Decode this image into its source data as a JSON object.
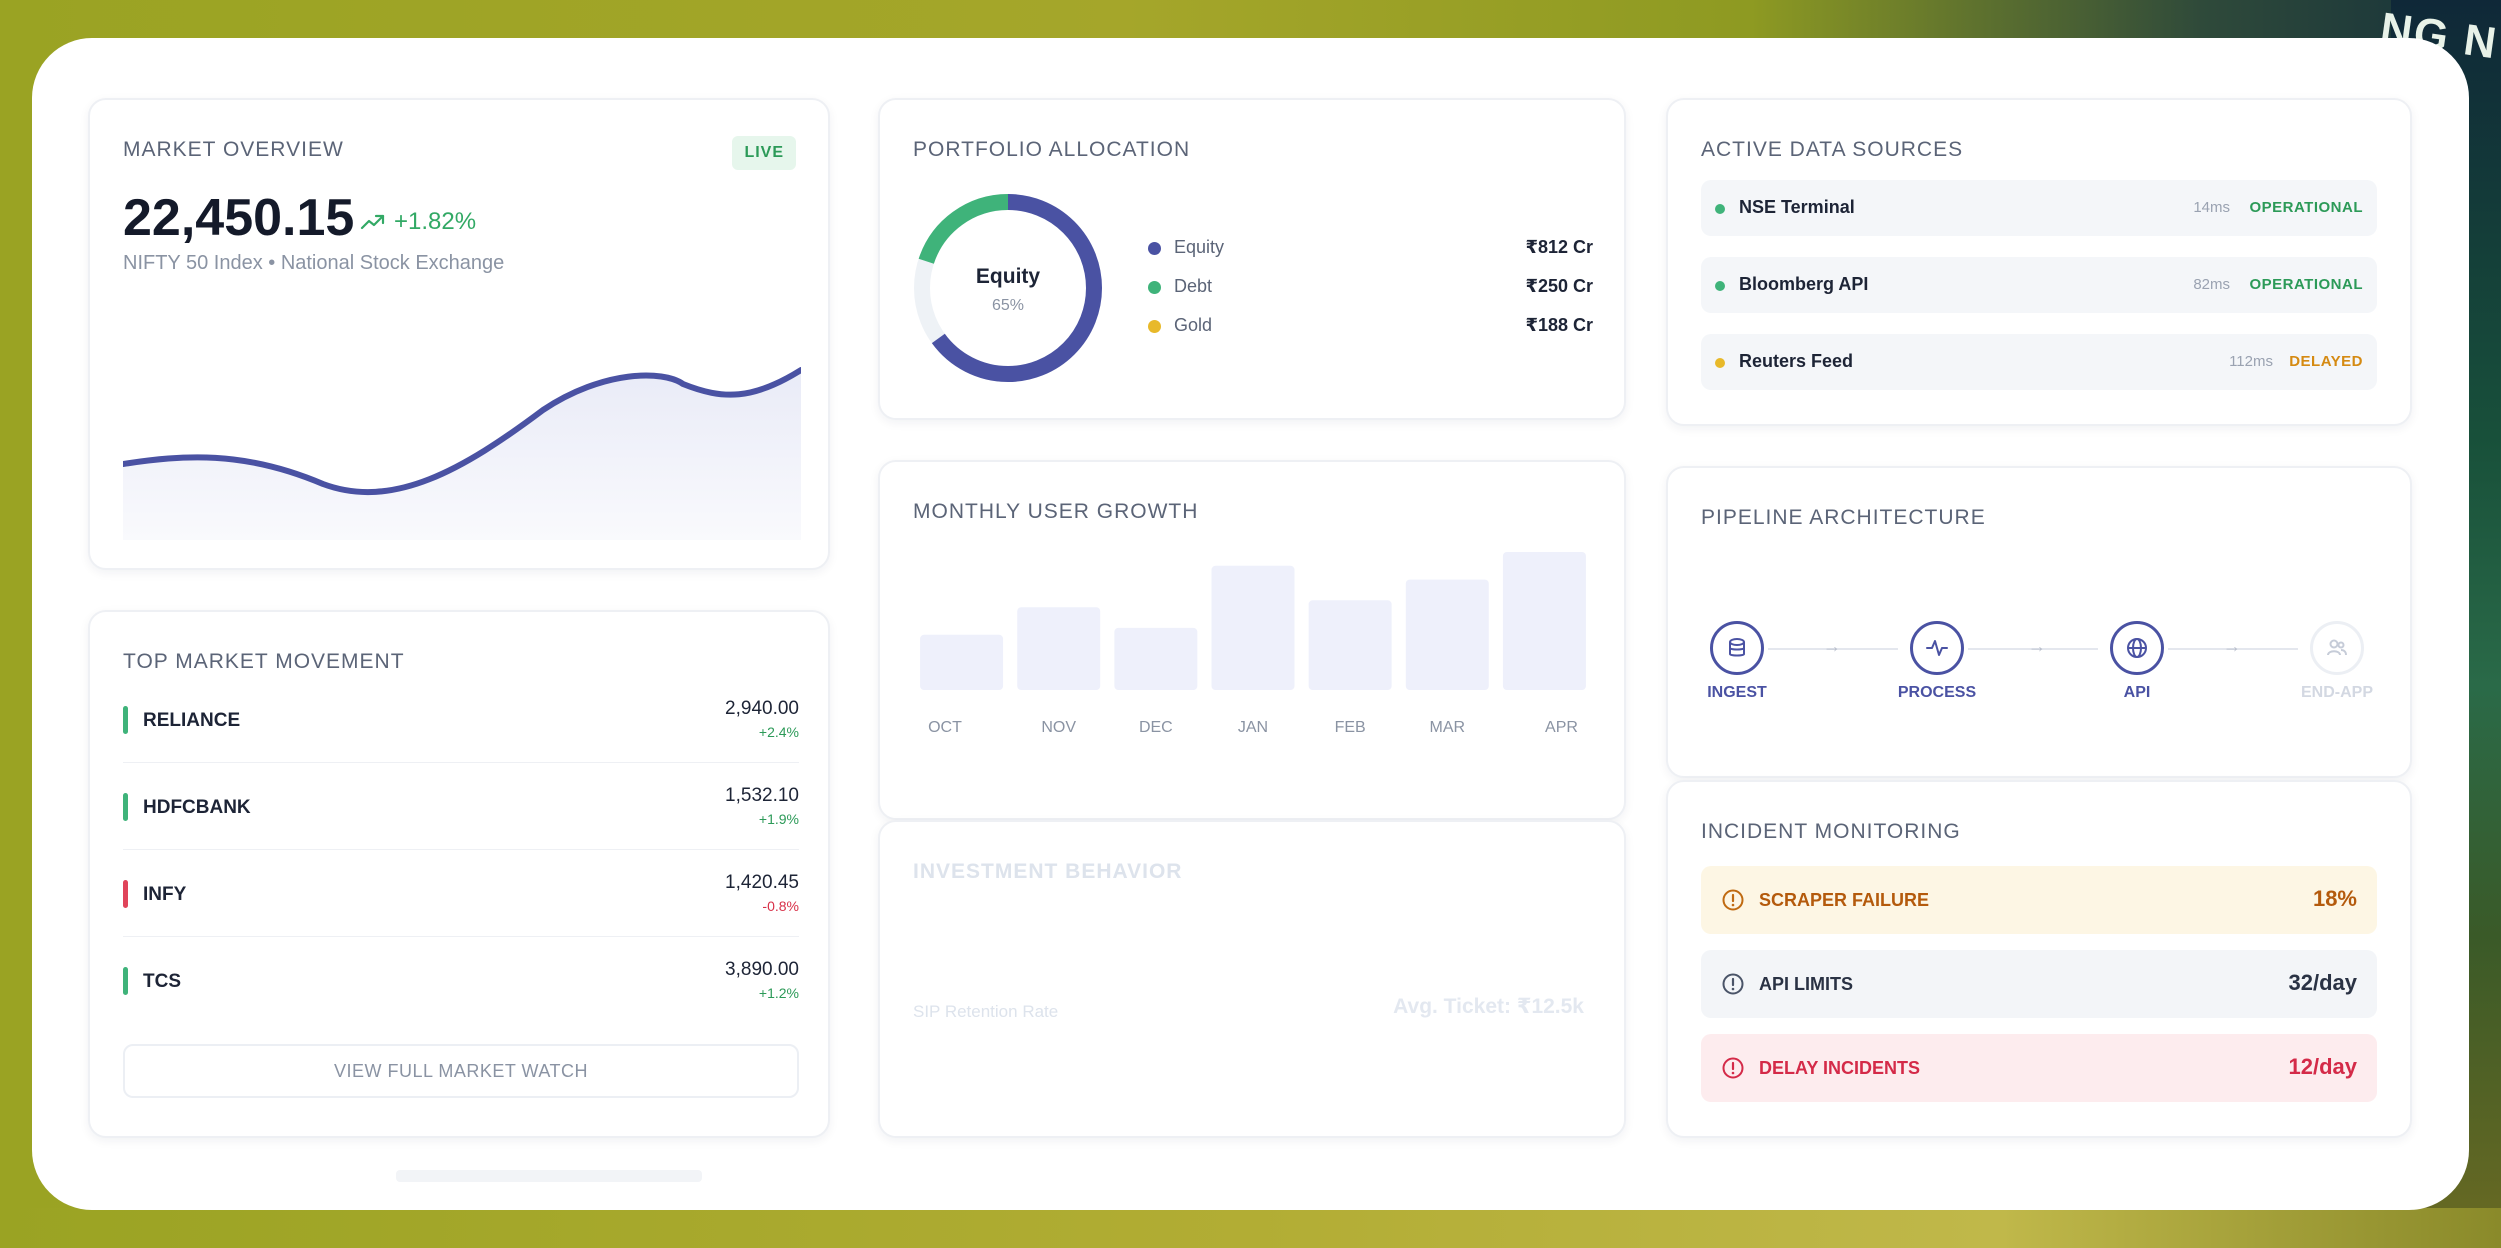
{
  "background": {
    "banner_text": "NG N"
  },
  "market_overview": {
    "title": "MARKET OVERVIEW",
    "badge": "LIVE",
    "value": "22,450.15",
    "change": "+1.82%",
    "subtitle": "NIFTY 50 Index • National Stock Exchange",
    "trend_color": "#4a52a3"
  },
  "top_movement": {
    "title": "TOP MARKET MOVEMENT",
    "rows": [
      {
        "symbol": "RELIANCE",
        "price": "2,940.00",
        "change": "+2.4%",
        "direction": "up"
      },
      {
        "symbol": "HDFCBANK",
        "price": "1,532.10",
        "change": "+1.9%",
        "direction": "up"
      },
      {
        "symbol": "INFY",
        "price": "1,420.45",
        "change": "-0.8%",
        "direction": "down"
      },
      {
        "symbol": "TCS",
        "price": "3,890.00",
        "change": "+1.2%",
        "direction": "up"
      }
    ],
    "button_label": "VIEW FULL MARKET WATCH"
  },
  "portfolio": {
    "title": "PORTFOLIO ALLOCATION",
    "center_label": "Equity",
    "center_value": "65%",
    "items": [
      {
        "label": "Equity",
        "value": "₹812 Cr",
        "color": "#4a52a3",
        "share": 0.65
      },
      {
        "label": "Debt",
        "value": "₹250 Cr",
        "color": "#3fb37a",
        "share": 0.2
      },
      {
        "label": "Gold",
        "value": "₹188 Cr",
        "color": "#e8b92a",
        "share": 0.15
      }
    ]
  },
  "user_growth": {
    "title": "MONTHLY USER GROWTH",
    "bar_color": "#eef0fb"
  },
  "chart_data": {
    "type": "bar",
    "categories": [
      "OCT",
      "NOV",
      "DEC",
      "JAN",
      "FEB",
      "MAR",
      "APR"
    ],
    "values": [
      40,
      60,
      45,
      90,
      65,
      80,
      100
    ],
    "title": "MONTHLY USER GROWTH",
    "xlabel": "",
    "ylabel": "",
    "ylim": [
      0,
      100
    ],
    "grid": false
  },
  "investment_behavior": {
    "title": "INVESTMENT BEHAVIOR",
    "left_label": "SIP Retention Rate",
    "right_label": "Avg. Ticket: ₹12.5k"
  },
  "data_sources": {
    "title": "ACTIVE DATA SOURCES",
    "rows": [
      {
        "name": "NSE Terminal",
        "latency": "14ms",
        "status": "OPERATIONAL",
        "color": "#2c9a58"
      },
      {
        "name": "Bloomberg API",
        "latency": "82ms",
        "status": "OPERATIONAL",
        "color": "#2c9a58"
      },
      {
        "name": "Reuters Feed",
        "latency": "112ms",
        "status": "DELAYED",
        "color": "#d58a12"
      }
    ]
  },
  "pipeline": {
    "title": "PIPELINE ARCHITECTURE",
    "nodes": [
      {
        "label": "INGEST",
        "icon": "database-icon"
      },
      {
        "label": "PROCESS",
        "icon": "activity-icon"
      },
      {
        "label": "API",
        "icon": "globe-icon"
      },
      {
        "label": "END-APP",
        "icon": "users-icon"
      }
    ]
  },
  "incidents": {
    "title": "INCIDENT MONITORING",
    "rows": [
      {
        "label": "SCRAPER FAILURE",
        "value": "18%",
        "tone": "warning"
      },
      {
        "label": "API LIMITS",
        "value": "32/day",
        "tone": "neutral"
      },
      {
        "label": "DELAY INCIDENTS",
        "value": "12/day",
        "tone": "danger"
      }
    ]
  }
}
